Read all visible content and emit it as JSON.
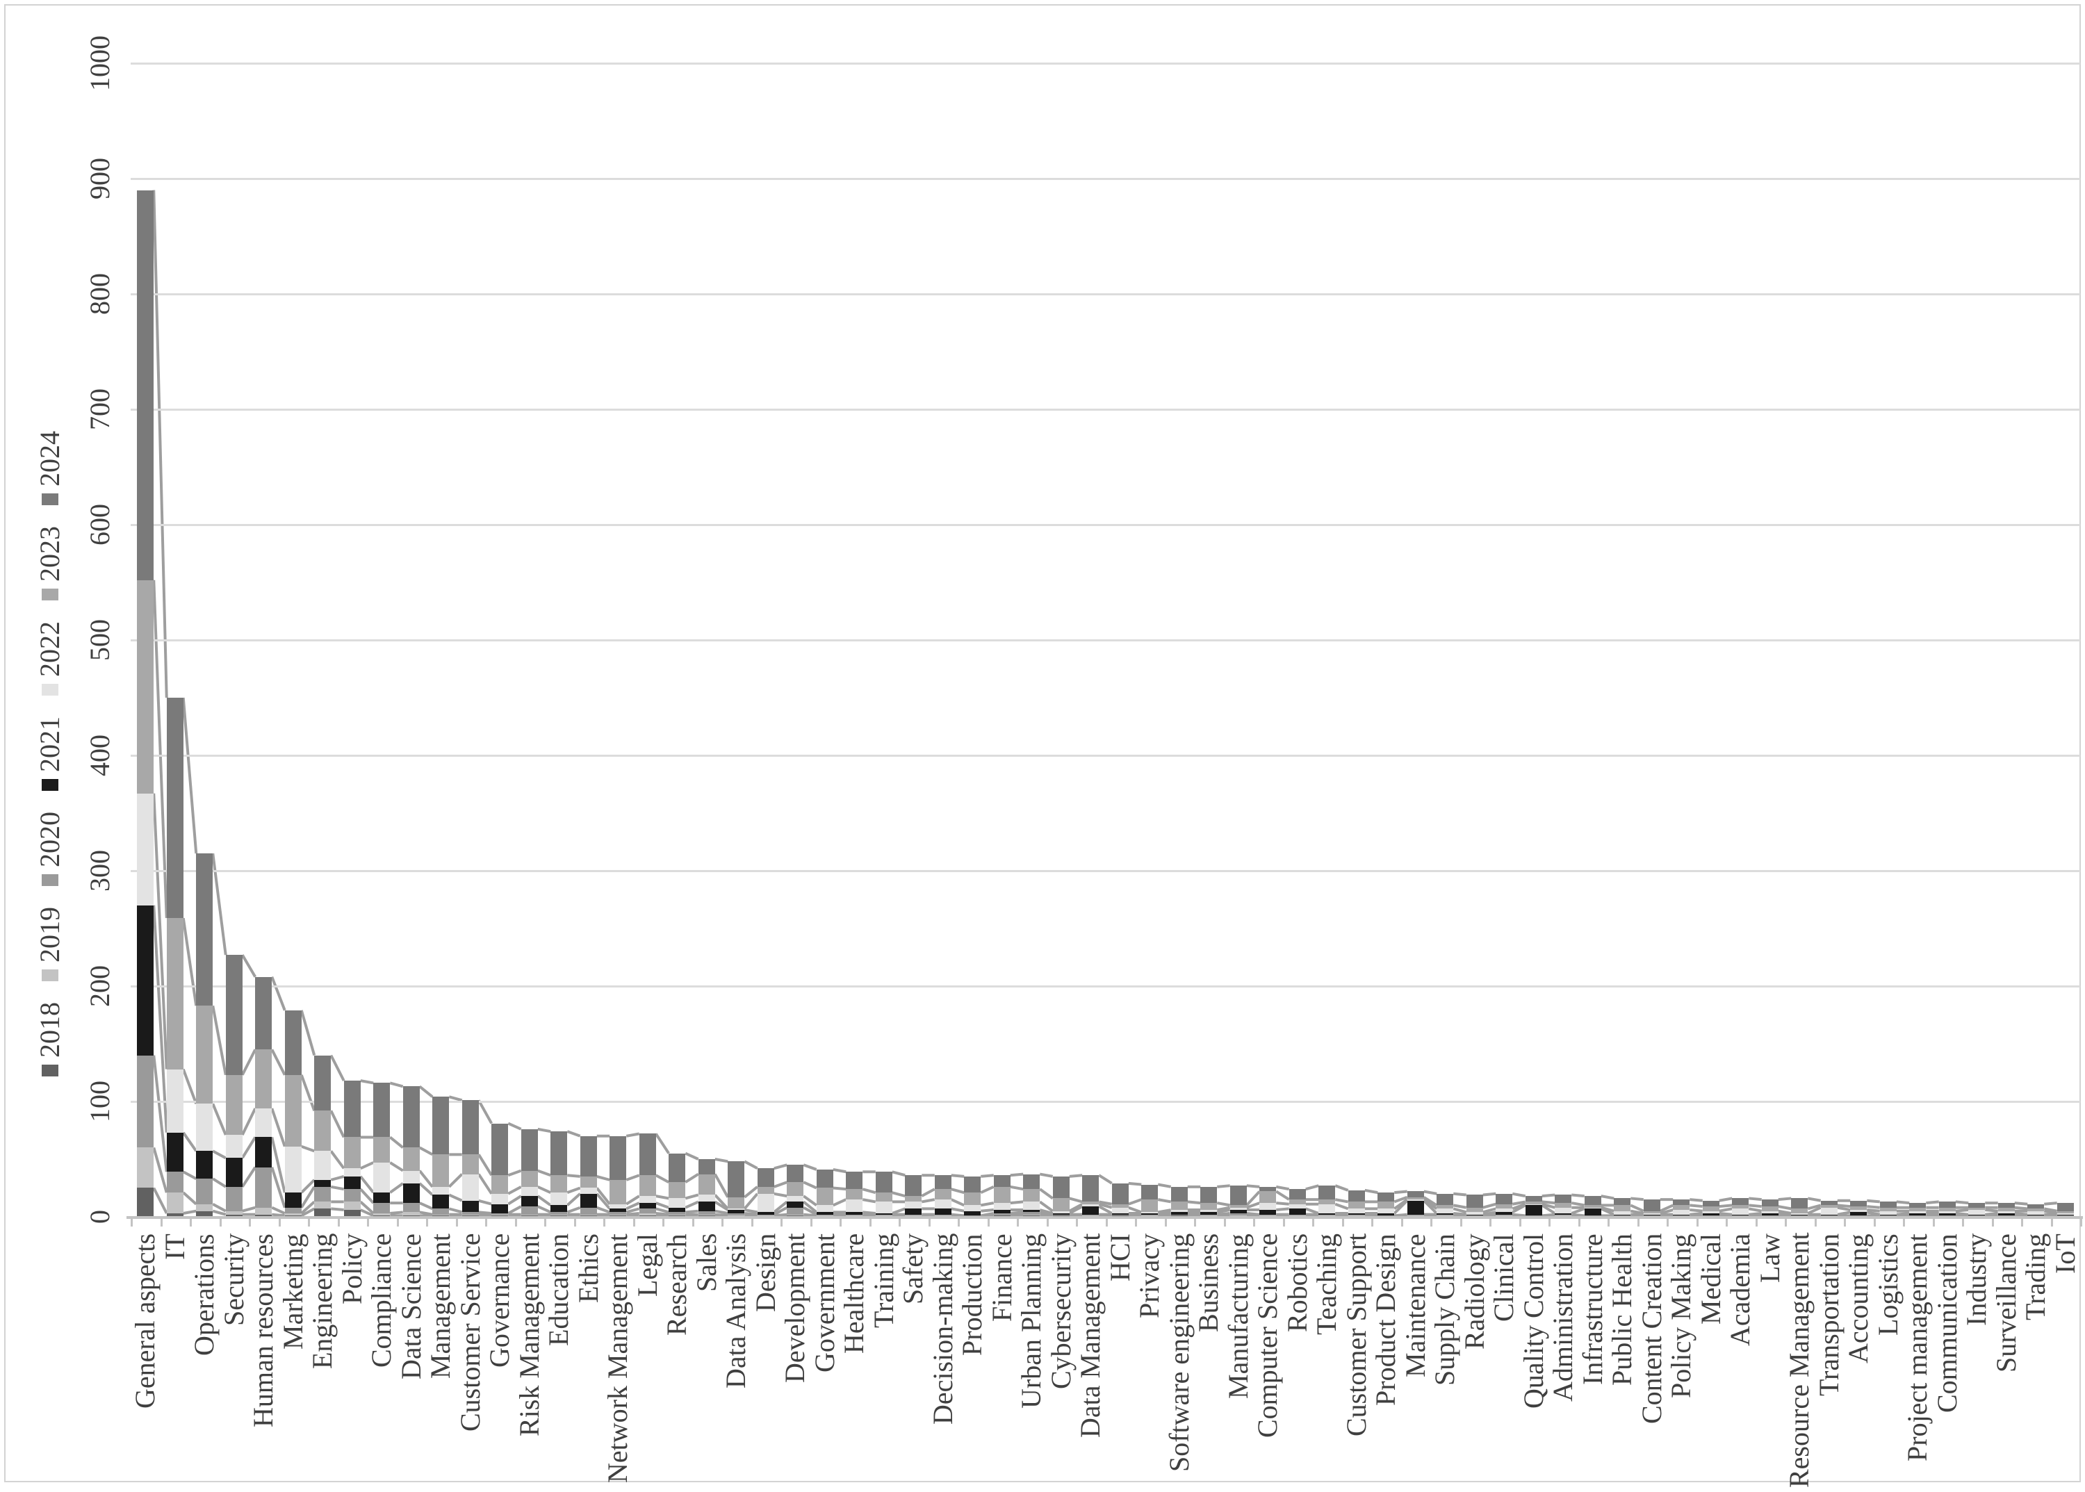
{
  "figure": {
    "background": "#ffffff",
    "border_color": "#d3d3d3",
    "title": "",
    "text_color": "#3f3f3f",
    "all_text_rotated_degrees": 90
  },
  "legend": {
    "position": "left",
    "order_bottom_to_top": [
      "2018",
      "2019",
      "2020",
      "2021",
      "2022",
      "2023",
      "2024"
    ]
  },
  "chart_data": {
    "type": "bar",
    "variant": "stacked-column-with-series-lines",
    "title": "",
    "xlabel": "",
    "ylabel": "",
    "grid": true,
    "series_line_color": "#9e9e9e",
    "y_axis": {
      "min": 0,
      "max": 1000,
      "tick_step": 100,
      "ticks": [
        0,
        100,
        200,
        300,
        400,
        500,
        600,
        700,
        800,
        900,
        1000
      ],
      "gridline_color": "#dcdcdc",
      "axis_line_color": "#c3c3c3"
    },
    "categories": [
      "General aspects",
      "IT",
      "Operations",
      "Security",
      "Human resources",
      "Marketing",
      "Engineering",
      "Policy",
      "Compliance",
      "Data Science",
      "Management",
      "Customer Service",
      "Governance",
      "Risk Management",
      "Education",
      "Ethics",
      "Network Management",
      "Legal",
      "Research",
      "Sales",
      "Data Analysis",
      "Design",
      "Development",
      "Government",
      "Healthcare",
      "Training",
      "Safety",
      "Decision-making",
      "Production",
      "Finance",
      "Urban Planning",
      "Cybersecurity",
      "Data Management",
      "HCI",
      "Privacy",
      "Software engineering",
      "Business",
      "Manufacturing",
      "Computer Science",
      "Robotics",
      "Teaching",
      "Customer Support",
      "Product Design",
      "Maintenance",
      "Supply Chain",
      "Radiology",
      "Clinical",
      "Quality Control",
      "Administration",
      "Infrastructure",
      "Public Health",
      "Content Creation",
      "Policy Making",
      "Medical",
      "Academia",
      "Law",
      "Resource Management",
      "Transportation",
      "Accounting",
      "Logistics",
      "Project management",
      "Communication",
      "Industry",
      "Surveillance",
      "Trading",
      "IoT"
    ],
    "series": [
      {
        "name": "2018",
        "color": "#616161",
        "values": [
          25,
          3,
          5,
          2,
          2,
          1,
          7,
          6,
          1,
          1,
          1,
          1,
          1,
          1,
          1,
          1,
          1,
          1,
          1,
          1,
          0,
          0,
          1,
          0,
          0,
          0,
          0,
          0,
          0,
          1,
          1,
          1,
          0,
          1,
          0,
          1,
          0,
          0,
          0,
          0,
          0,
          0,
          0,
          0,
          0,
          0,
          0,
          0,
          0,
          0,
          0,
          0,
          0,
          0,
          0,
          0,
          0,
          0,
          0,
          0,
          0,
          0,
          0,
          0,
          0,
          0
        ]
      },
      {
        "name": "2019",
        "color": "#c3c3c3",
        "values": [
          35,
          18,
          6,
          3,
          6,
          2,
          6,
          7,
          2,
          3,
          1,
          1,
          1,
          1,
          1,
          1,
          1,
          2,
          1,
          1,
          1,
          1,
          1,
          1,
          1,
          1,
          1,
          1,
          0,
          0,
          1,
          0,
          1,
          0,
          1,
          0,
          1,
          1,
          1,
          1,
          1,
          1,
          0,
          1,
          1,
          0,
          1,
          0,
          1,
          0,
          0,
          0,
          0,
          0,
          0,
          0,
          0,
          0,
          0,
          0,
          0,
          0,
          0,
          0,
          0,
          0
        ]
      },
      {
        "name": "2020",
        "color": "#9a9a9a",
        "values": [
          80,
          18,
          22,
          21,
          35,
          5,
          13,
          11,
          9,
          8,
          5,
          2,
          1,
          7,
          2,
          6,
          2,
          4,
          2,
          3,
          2,
          1,
          6,
          1,
          1,
          1,
          1,
          1,
          1,
          2,
          2,
          1,
          1,
          1,
          1,
          1,
          1,
          2,
          1,
          1,
          1,
          1,
          1,
          1,
          1,
          1,
          1,
          1,
          1,
          1,
          1,
          1,
          1,
          1,
          1,
          1,
          1,
          1,
          1,
          1,
          1,
          1,
          1,
          1,
          1,
          1
        ]
      },
      {
        "name": "2021",
        "color": "#1a1a1a",
        "values": [
          130,
          34,
          24,
          25,
          26,
          13,
          6,
          11,
          9,
          17,
          12,
          10,
          8,
          9,
          6,
          12,
          3,
          5,
          4,
          8,
          3,
          2,
          5,
          2,
          2,
          1,
          5,
          5,
          4,
          3,
          2,
          1,
          7,
          1,
          1,
          2,
          2,
          3,
          4,
          5,
          1,
          1,
          2,
          12,
          1,
          1,
          2,
          9,
          1,
          6,
          1,
          1,
          1,
          2,
          1,
          2,
          1,
          1,
          3,
          1,
          2,
          2,
          1,
          2,
          1,
          1
        ]
      },
      {
        "name": "2022",
        "color": "#e3e3e3",
        "values": [
          97,
          55,
          41,
          20,
          25,
          40,
          25,
          7,
          26,
          11,
          7,
          23,
          9,
          8,
          11,
          5,
          4,
          6,
          8,
          6,
          1,
          16,
          5,
          6,
          11,
          10,
          6,
          8,
          5,
          6,
          7,
          2,
          2,
          5,
          1,
          2,
          2,
          2,
          6,
          4,
          8,
          4,
          4,
          1,
          4,
          2,
          3,
          1,
          5,
          1,
          3,
          1,
          4,
          2,
          5,
          2,
          1,
          6,
          2,
          3,
          2,
          2,
          4,
          2,
          3,
          1
        ]
      },
      {
        "name": "2023",
        "color": "#a8a8a8",
        "values": [
          185,
          131,
          85,
          52,
          51,
          62,
          35,
          27,
          22,
          20,
          28,
          17,
          16,
          14,
          15,
          10,
          21,
          18,
          14,
          18,
          10,
          6,
          12,
          15,
          9,
          8,
          5,
          9,
          11,
          14,
          11,
          11,
          2,
          3,
          11,
          7,
          6,
          2,
          10,
          4,
          4,
          6,
          6,
          2,
          3,
          4,
          4,
          2,
          4,
          2,
          5,
          2,
          4,
          4,
          3,
          4,
          4,
          2,
          3,
          3,
          3,
          3,
          2,
          3,
          2,
          2
        ]
      },
      {
        "name": "2024",
        "color": "#7a7a7a",
        "values": [
          338,
          191,
          132,
          104,
          63,
          56,
          48,
          49,
          47,
          53,
          50,
          47,
          45,
          36,
          38,
          35,
          38,
          36,
          25,
          13,
          31,
          16,
          15,
          16,
          15,
          18,
          18,
          12,
          14,
          10,
          13,
          19,
          23,
          18,
          13,
          13,
          14,
          17,
          4,
          9,
          12,
          10,
          8,
          5,
          10,
          11,
          9,
          5,
          7,
          8,
          6,
          10,
          5,
          5,
          6,
          6,
          9,
          4,
          5,
          5,
          4,
          5,
          4,
          4,
          4,
          7
        ]
      }
    ]
  }
}
